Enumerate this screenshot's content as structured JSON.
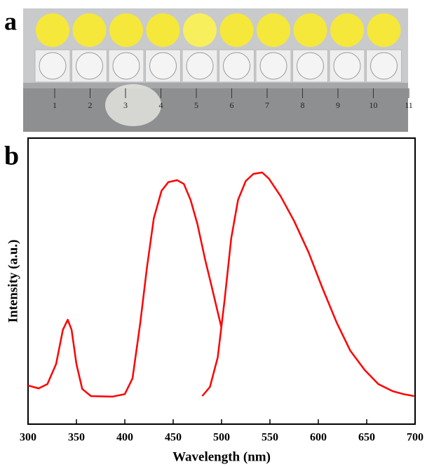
{
  "panel_labels": [
    "a",
    "b"
  ],
  "photo": {
    "ruler_labels": [
      "1",
      "2",
      "3",
      "4",
      "5",
      "6",
      "7",
      "8",
      "9",
      "10",
      "11"
    ]
  },
  "chart_data": {
    "type": "line",
    "x_label": "Wavelength (nm)",
    "y_label": "Intensity (a.u.)",
    "xlim": [
      300,
      700
    ],
    "xticks": [
      300,
      350,
      400,
      450,
      500,
      550,
      600,
      650,
      700
    ],
    "ylim": [
      0,
      100
    ],
    "series": [
      {
        "color": "#ff0000",
        "x": [
          300,
          311,
          320,
          329,
          336,
          341,
          345,
          350,
          356,
          365,
          387,
          400,
          408,
          416,
          423,
          430,
          438,
          445,
          454,
          461,
          468,
          475,
          483,
          490,
          496,
          500
        ],
        "values": [
          13.5,
          12.5,
          14,
          21,
          33,
          36.5,
          33,
          21,
          12.3,
          9.8,
          9.6,
          10.5,
          16,
          35.5,
          55,
          72,
          81.6,
          84.6,
          85.3,
          84,
          78.4,
          70,
          57.6,
          47.8,
          39.2,
          33.6
        ]
      },
      {
        "color": "#ff0000",
        "x": [
          480,
          488,
          496,
          503,
          510,
          517,
          525,
          533,
          542,
          549,
          561,
          575,
          590,
          604,
          619,
          633,
          648,
          662,
          677,
          688,
          699
        ],
        "values": [
          9.8,
          13,
          23.3,
          42.9,
          65,
          78.4,
          85,
          87.5,
          88,
          85.8,
          79.7,
          71,
          60,
          47.8,
          35.5,
          25.7,
          18.9,
          14,
          11.5,
          10.5,
          9.8
        ]
      }
    ]
  }
}
